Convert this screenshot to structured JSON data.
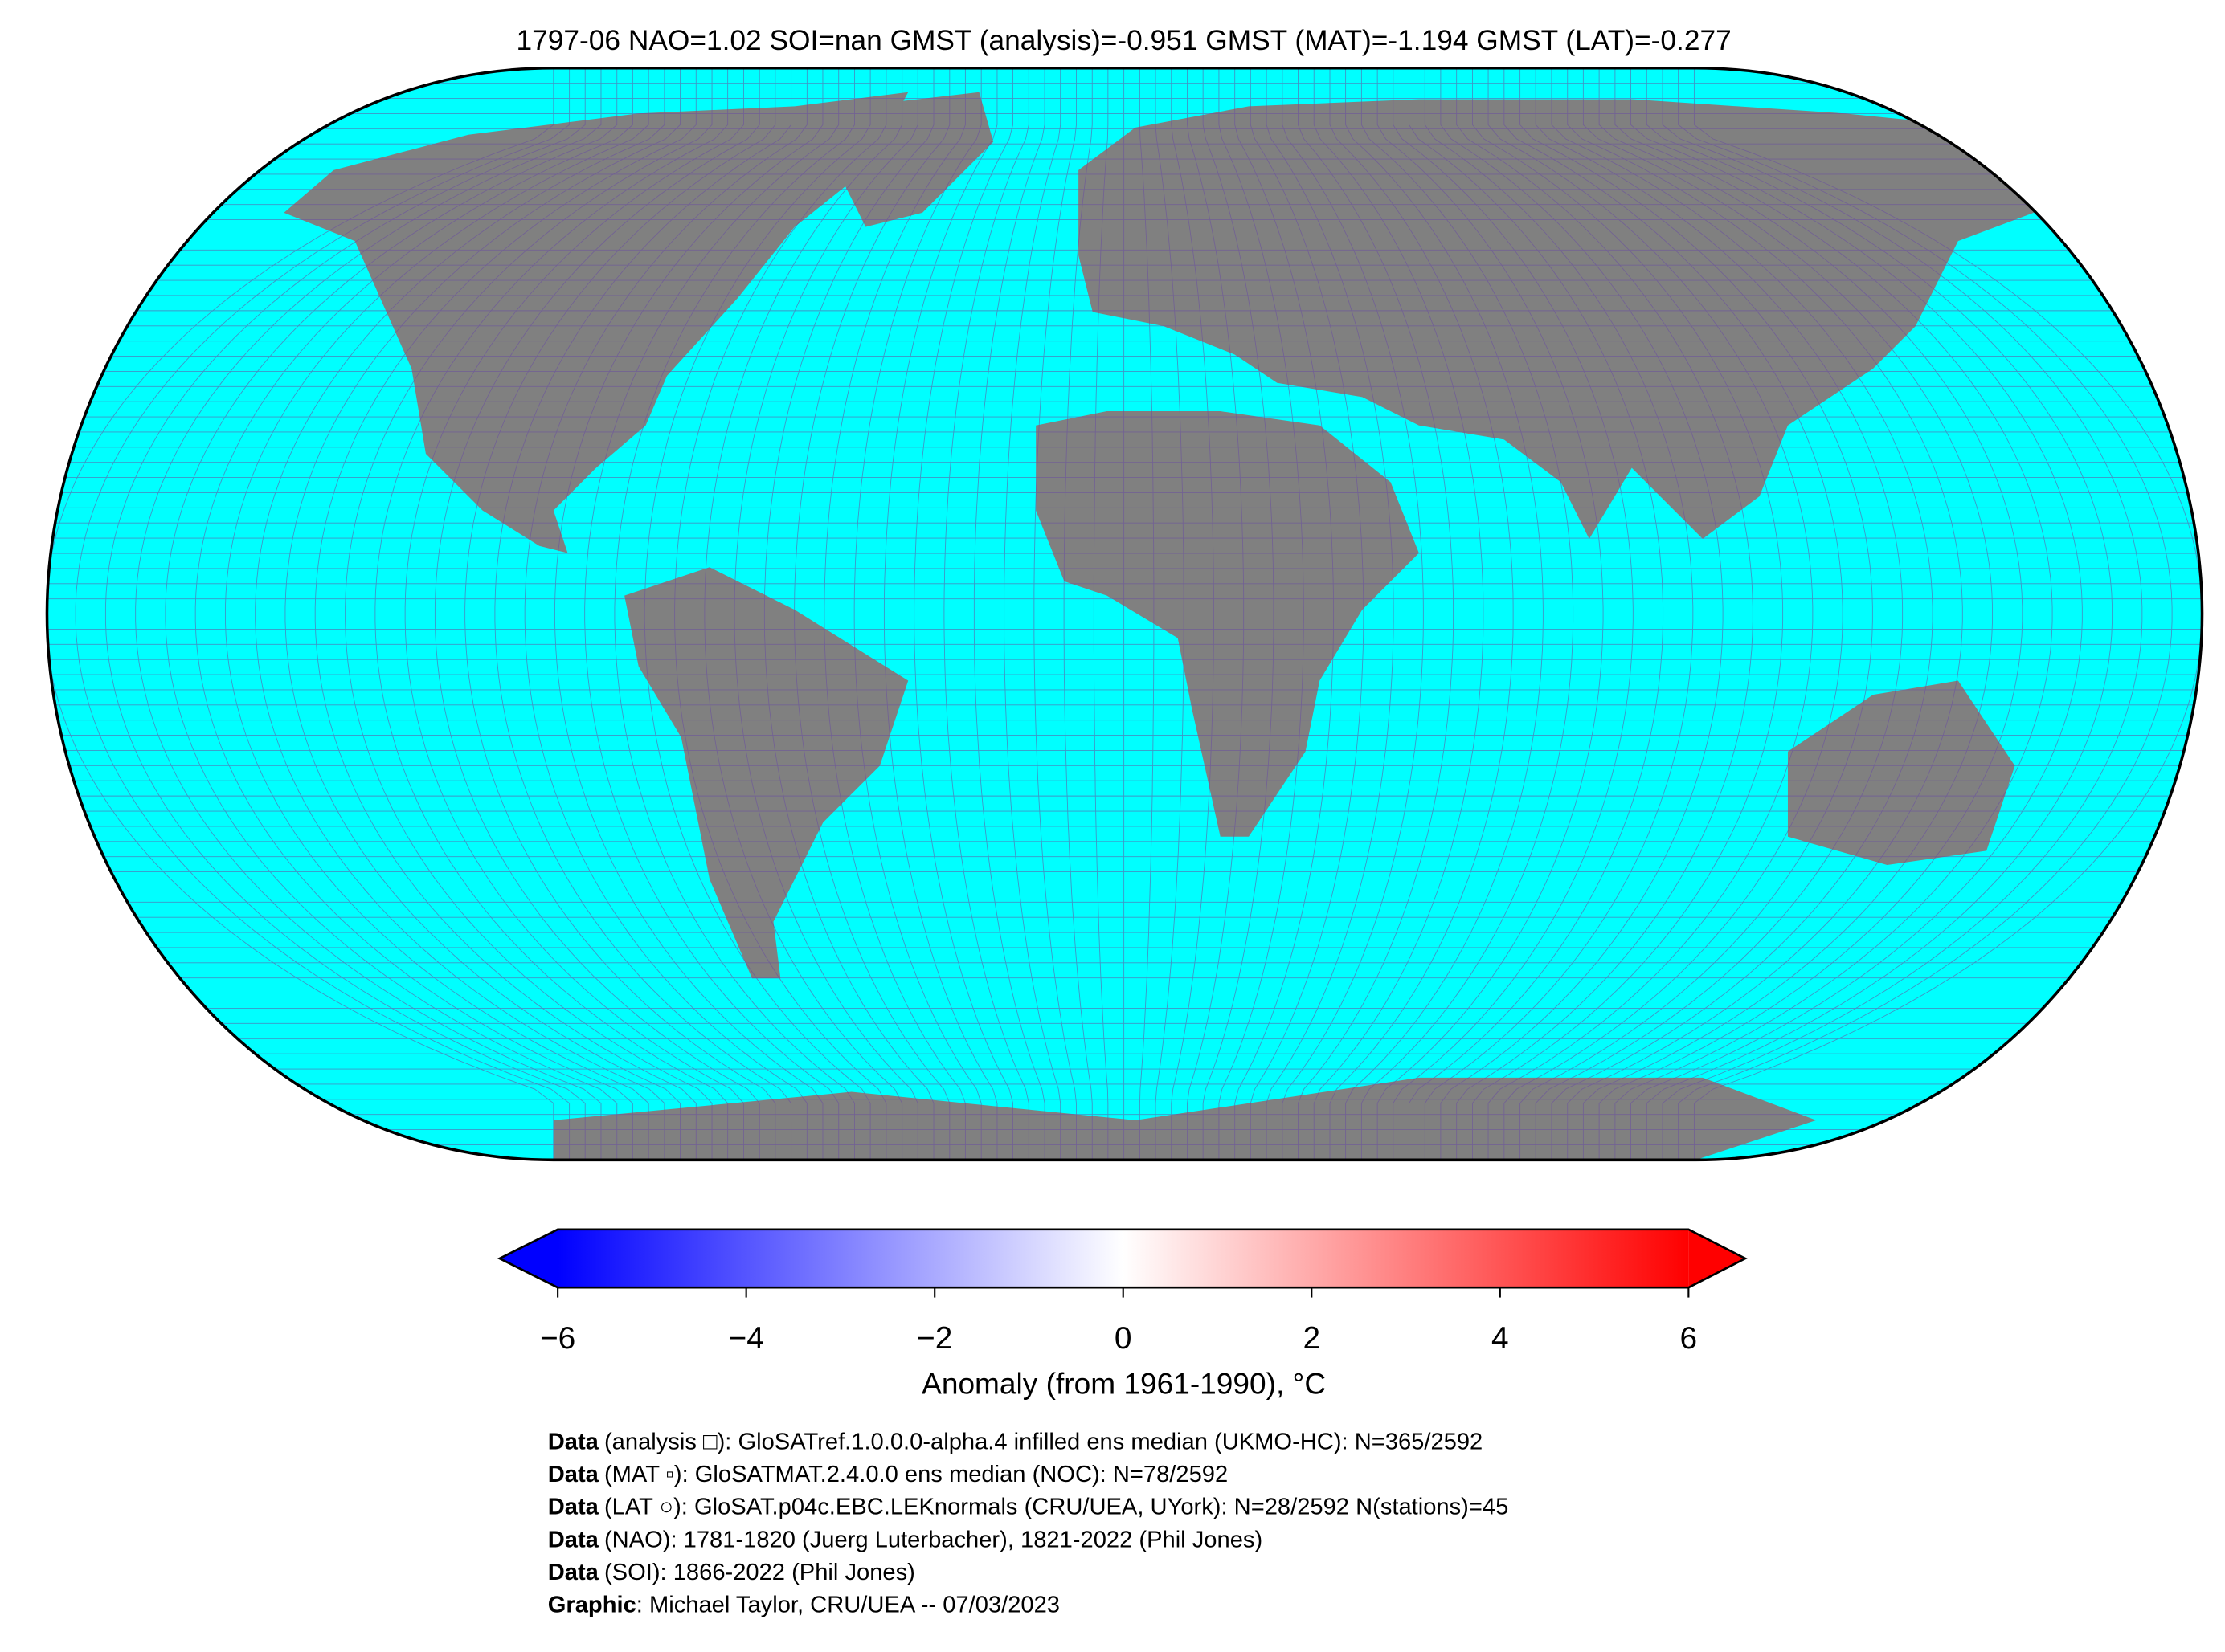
{
  "title": "1797-06 NAO=1.02 SOI=nan GMST (analysis)=-0.951 GMST (MAT)=-1.194 GMST (LAT)=-0.277",
  "colorbar": {
    "label": "Anomaly (from 1961-1990), °C",
    "vmin": -6,
    "vmax": 6,
    "colors": [
      "#0000ff",
      "#ffffff",
      "#ff0000"
    ],
    "ticks": [
      {
        "value": -6,
        "label": "−6"
      },
      {
        "value": -4,
        "label": "−4"
      },
      {
        "value": -2,
        "label": "−2"
      },
      0,
      2,
      4,
      6
    ]
  },
  "footer": [
    {
      "bold": "Data",
      "text": "(analysis □): GloSATref.1.0.0.0-alpha.4 infilled ens median (UKMO-HC): N=365/2592"
    },
    {
      "bold": "Data",
      "text": "(MAT ▫): GloSATMAT.2.4.0.0 ens median (NOC): N=78/2592"
    },
    {
      "bold": "Data",
      "text": "(LAT ○): GloSAT.p04c.EBC.LEKnormals (CRU/UEA, UYork): N=28/2592 N(stations)=45"
    },
    {
      "bold": "Data",
      "text": "(NAO): 1781-1820 (Juerg Luterbacher), 1821-2022 (Phil Jones)"
    },
    {
      "bold": "Data",
      "text": "(SOI): 1866-2022 (Phil Jones)"
    },
    {
      "bold": "Graphic",
      "text": ": Michael Taylor, CRU/UEA -- 07/03/2023"
    }
  ]
}
